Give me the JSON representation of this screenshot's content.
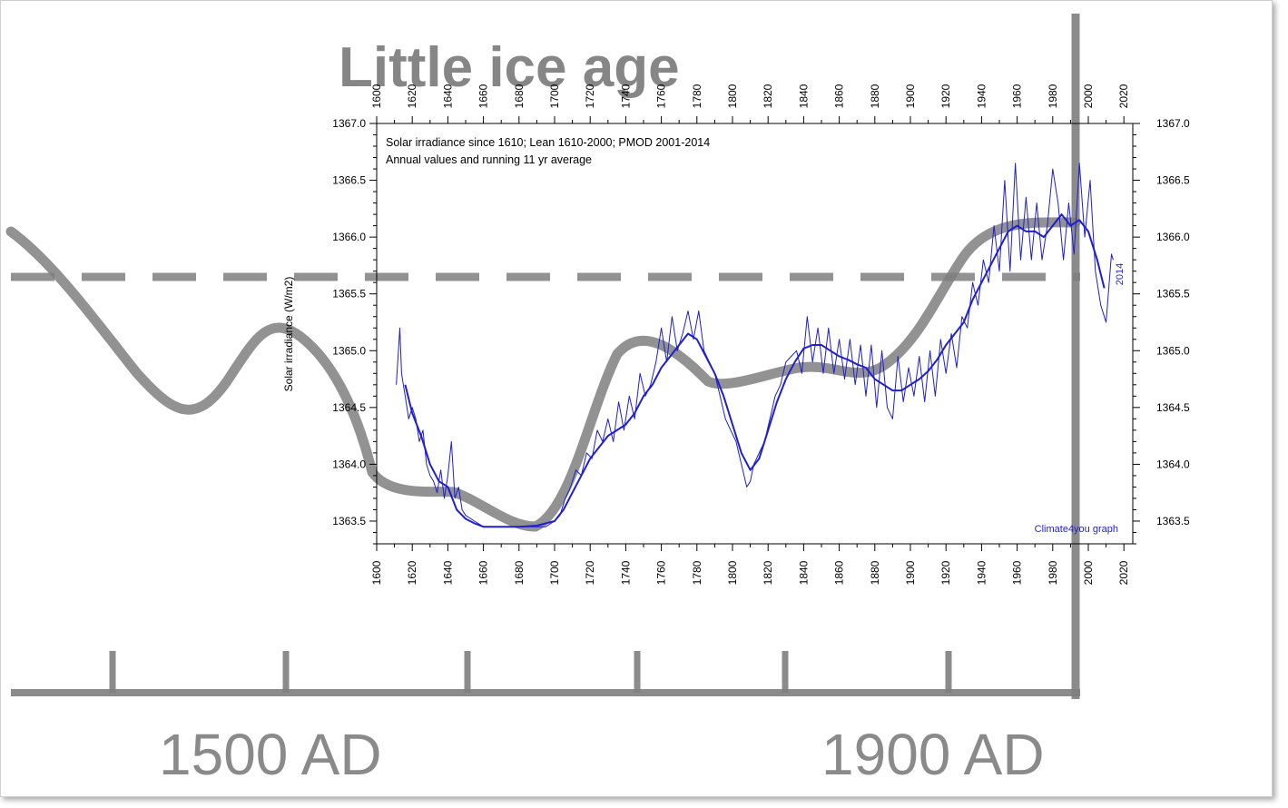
{
  "underlay": {
    "title": "Little ice age",
    "axis_labels": [
      "1500 AD",
      "1900 AD"
    ]
  },
  "chart_data": {
    "type": "line",
    "title_lines": [
      "Solar irradiance since 1610; Lean 1610-2000; PMOD 2001-2014",
      "Annual values and running 11 yr average"
    ],
    "ylabel": "Solar irradiance (W/m2)",
    "xlim": [
      1600,
      2025
    ],
    "ylim": [
      1363.3,
      1367.0
    ],
    "x_ticks": [
      1600,
      1620,
      1640,
      1660,
      1680,
      1700,
      1720,
      1740,
      1760,
      1780,
      1800,
      1820,
      1840,
      1860,
      1880,
      1900,
      1920,
      1940,
      1960,
      1980,
      2000,
      2020
    ],
    "y_ticks": [
      "1363.5",
      "1364.0",
      "1364.5",
      "1365.0",
      "1365.5",
      "1366.0",
      "1366.5",
      "1367.0"
    ],
    "end_label": "2014",
    "credit": "Climate4you graph",
    "line_color": "#1f1fd0",
    "series": [
      {
        "kind": "annual",
        "x": [
          1611,
          1613,
          1614,
          1616,
          1618,
          1620,
          1622,
          1624,
          1626,
          1628,
          1630,
          1632,
          1634,
          1636,
          1638,
          1640,
          1642,
          1644,
          1646,
          1648,
          1650,
          1655,
          1660,
          1665,
          1670,
          1675,
          1680,
          1685,
          1690,
          1695,
          1700,
          1703,
          1706,
          1709,
          1712,
          1715,
          1718,
          1721,
          1724,
          1727,
          1730,
          1733,
          1736,
          1739,
          1742,
          1745,
          1748,
          1751,
          1754,
          1757,
          1760,
          1763,
          1766,
          1769,
          1772,
          1775,
          1778,
          1781,
          1784,
          1787,
          1790,
          1793,
          1796,
          1799,
          1802,
          1805,
          1808,
          1810,
          1812,
          1815,
          1818,
          1821,
          1824,
          1827,
          1830,
          1833,
          1836,
          1839,
          1842,
          1845,
          1848,
          1851,
          1854,
          1857,
          1860,
          1863,
          1866,
          1869,
          1872,
          1875,
          1878,
          1881,
          1884,
          1887,
          1890,
          1893,
          1896,
          1899,
          1902,
          1905,
          1908,
          1911,
          1914,
          1917,
          1920,
          1923,
          1926,
          1929,
          1932,
          1935,
          1938,
          1941,
          1944,
          1947,
          1950,
          1953,
          1956,
          1959,
          1962,
          1965,
          1968,
          1971,
          1974,
          1977,
          1980,
          1983,
          1986,
          1989,
          1992,
          1995,
          1998,
          2001,
          2004,
          2007,
          2010,
          2013,
          2014
        ],
        "y": [
          1364.7,
          1365.2,
          1364.8,
          1364.6,
          1364.4,
          1364.5,
          1364.4,
          1364.2,
          1364.3,
          1364.0,
          1363.9,
          1363.85,
          1363.75,
          1363.95,
          1363.7,
          1363.9,
          1364.2,
          1363.7,
          1363.8,
          1363.6,
          1363.55,
          1363.5,
          1363.45,
          1363.45,
          1363.45,
          1363.45,
          1363.45,
          1363.45,
          1363.45,
          1363.45,
          1363.5,
          1363.55,
          1363.7,
          1363.8,
          1363.95,
          1363.9,
          1364.1,
          1364.05,
          1364.3,
          1364.2,
          1364.4,
          1364.2,
          1364.55,
          1364.3,
          1364.6,
          1364.4,
          1364.8,
          1364.6,
          1364.7,
          1364.9,
          1365.2,
          1364.9,
          1365.3,
          1365.0,
          1365.15,
          1365.35,
          1365.1,
          1365.35,
          1365.0,
          1364.9,
          1364.8,
          1364.6,
          1364.4,
          1364.3,
          1364.2,
          1364.0,
          1363.8,
          1363.85,
          1364.0,
          1364.1,
          1364.2,
          1364.4,
          1364.6,
          1364.7,
          1364.9,
          1364.95,
          1365.0,
          1364.8,
          1365.3,
          1364.9,
          1365.2,
          1364.8,
          1365.2,
          1364.8,
          1365.1,
          1364.75,
          1365.1,
          1364.7,
          1365.05,
          1364.6,
          1365.05,
          1364.5,
          1365.0,
          1364.5,
          1364.4,
          1364.95,
          1364.55,
          1364.85,
          1364.6,
          1364.95,
          1364.55,
          1365.0,
          1364.6,
          1365.1,
          1364.8,
          1365.15,
          1364.85,
          1365.3,
          1365.2,
          1365.6,
          1365.4,
          1365.8,
          1365.6,
          1366.1,
          1365.7,
          1366.5,
          1365.7,
          1366.65,
          1365.8,
          1366.35,
          1365.8,
          1366.3,
          1365.8,
          1366.1,
          1366.6,
          1366.3,
          1365.8,
          1366.3,
          1365.85,
          1366.65,
          1366.0,
          1366.5,
          1365.7,
          1365.4,
          1365.25,
          1365.85,
          1365.8
        ]
      },
      {
        "kind": "running 11 yr average",
        "x": [
          1616,
          1620,
          1625,
          1630,
          1635,
          1640,
          1645,
          1650,
          1655,
          1660,
          1670,
          1680,
          1690,
          1700,
          1705,
          1710,
          1715,
          1720,
          1725,
          1730,
          1735,
          1740,
          1745,
          1750,
          1755,
          1760,
          1765,
          1770,
          1775,
          1780,
          1785,
          1790,
          1795,
          1800,
          1805,
          1810,
          1815,
          1820,
          1825,
          1830,
          1835,
          1840,
          1845,
          1850,
          1855,
          1860,
          1865,
          1870,
          1875,
          1880,
          1885,
          1890,
          1895,
          1900,
          1905,
          1910,
          1915,
          1920,
          1925,
          1930,
          1935,
          1940,
          1945,
          1950,
          1955,
          1960,
          1965,
          1970,
          1975,
          1980,
          1985,
          1990,
          1995,
          2000,
          2005,
          2009
        ],
        "y": [
          1364.7,
          1364.45,
          1364.25,
          1364.0,
          1363.85,
          1363.8,
          1363.6,
          1363.52,
          1363.48,
          1363.45,
          1363.45,
          1363.45,
          1363.46,
          1363.5,
          1363.6,
          1363.75,
          1363.9,
          1364.05,
          1364.15,
          1364.25,
          1364.3,
          1364.35,
          1364.45,
          1364.6,
          1364.7,
          1364.85,
          1364.95,
          1365.05,
          1365.15,
          1365.1,
          1364.95,
          1364.8,
          1364.6,
          1364.35,
          1364.1,
          1363.95,
          1364.05,
          1364.3,
          1364.55,
          1364.75,
          1364.9,
          1365.02,
          1365.05,
          1365.05,
          1365.0,
          1364.95,
          1364.92,
          1364.88,
          1364.85,
          1364.75,
          1364.7,
          1364.65,
          1364.65,
          1364.7,
          1364.75,
          1364.82,
          1364.92,
          1365.05,
          1365.15,
          1365.25,
          1365.45,
          1365.6,
          1365.75,
          1365.9,
          1366.05,
          1366.1,
          1366.05,
          1366.05,
          1366.0,
          1366.1,
          1366.2,
          1366.1,
          1366.15,
          1366.05,
          1365.8,
          1365.55
        ]
      }
    ]
  }
}
